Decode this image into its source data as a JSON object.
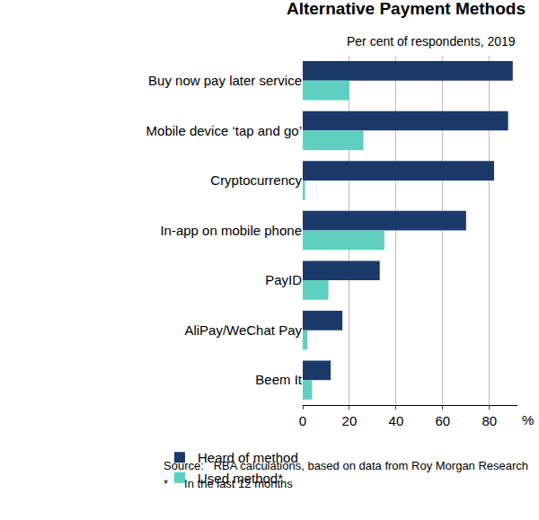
{
  "chart_data": {
    "type": "bar",
    "orientation": "horizontal",
    "title": "Alternative Payment Methods",
    "subtitle": "Per cent of respondents, 2019",
    "xlabel": "%",
    "categories": [
      "Buy now pay later service",
      "Mobile device ‘tap and go’",
      "Cryptocurrency",
      "In-app on mobile phone",
      "PayID",
      "AliPay/WeChat Pay",
      "Beem It"
    ],
    "series": [
      {
        "name": "Heard of method",
        "color": "#1b3a6b",
        "values": [
          90,
          88,
          82,
          70,
          33,
          17,
          12
        ]
      },
      {
        "name": "Used method*",
        "color": "#5fcfc1",
        "values": [
          20,
          26,
          1,
          35,
          11,
          2,
          4
        ]
      }
    ],
    "xlim": [
      0,
      92
    ],
    "xticks": [
      0,
      20,
      40,
      60,
      80
    ],
    "grid": true,
    "legend": "bottom",
    "notes": [
      "*     In the last 12 months",
      "Source:   RBA calculations, based on data from Roy Morgan Research"
    ]
  }
}
